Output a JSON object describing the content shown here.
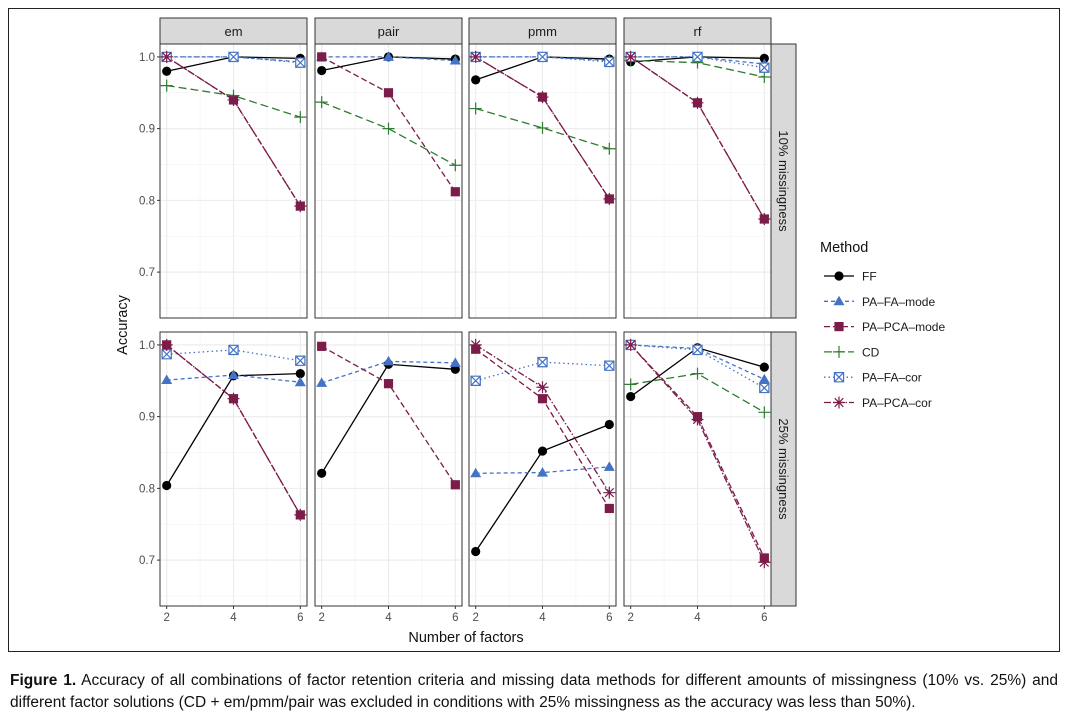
{
  "chart_data": {
    "type": "line",
    "xlabel": "Number of factors",
    "ylabel": "Accuracy",
    "x": [
      2,
      4,
      6
    ],
    "x_ticks": [
      "2",
      "4",
      "6"
    ],
    "ylim": [
      0.636,
      1.018
    ],
    "y_ticks": [
      0.7,
      0.8,
      0.9,
      1.0
    ],
    "y_tick_labels": [
      "0.7",
      "0.8",
      "0.9",
      "1.0"
    ],
    "grid": true,
    "legend": {
      "title": "Method",
      "placement": "right"
    },
    "columns": [
      "em",
      "pair",
      "pmm",
      "rf"
    ],
    "rows": [
      "10% missingness",
      "25% missingness"
    ],
    "methods": [
      {
        "name": "FF",
        "color": "#000000",
        "shape": "circle",
        "dash": "solid"
      },
      {
        "name": "PA–FA–mode",
        "color": "#4472C4",
        "shape": "triangle",
        "dash": "dashed"
      },
      {
        "name": "PA–PCA–mode",
        "color": "#7B1C4A",
        "shape": "square",
        "dash": "longdash"
      },
      {
        "name": "CD",
        "color": "#2E7D32",
        "shape": "plus",
        "dash": "longdash2"
      },
      {
        "name": "PA–FA–cor",
        "color": "#4472C4",
        "shape": "boxx",
        "dash": "dotted"
      },
      {
        "name": "PA–PCA–cor",
        "color": "#7B1C4A",
        "shape": "asterisk",
        "dash": "dotdash"
      }
    ],
    "panels": [
      {
        "row": 0,
        "col": 0,
        "series": {
          "FF": [
            0.98,
            1.0,
            0.998
          ],
          "PA–FA–mode": [
            1.0,
            1.0,
            0.993
          ],
          "PA–PCA–mode": [
            1.0,
            0.94,
            0.792
          ],
          "CD": [
            0.96,
            0.946,
            0.916
          ],
          "PA–FA–cor": [
            1.0,
            1.0,
            0.992
          ],
          "PA–PCA–cor": [
            1.0,
            0.94,
            0.792
          ]
        }
      },
      {
        "row": 0,
        "col": 1,
        "series": {
          "FF": [
            0.981,
            1.0,
            0.997
          ],
          "PA–FA–mode": [
            1.0,
            1.0,
            0.995
          ],
          "PA–PCA–mode": [
            1.0,
            0.95,
            0.812
          ],
          "CD": [
            0.937,
            0.9,
            0.849
          ]
        }
      },
      {
        "row": 0,
        "col": 2,
        "series": {
          "FF": [
            0.968,
            1.0,
            0.997
          ],
          "PA–FA–mode": [
            1.0,
            1.0,
            0.995
          ],
          "PA–PCA–mode": [
            1.0,
            0.944,
            0.802
          ],
          "CD": [
            0.928,
            0.901,
            0.872
          ],
          "PA–FA–cor": [
            1.0,
            1.0,
            0.993
          ],
          "PA–PCA–cor": [
            1.0,
            0.944,
            0.802
          ]
        }
      },
      {
        "row": 0,
        "col": 3,
        "series": {
          "FF": [
            0.993,
            1.0,
            0.998
          ],
          "PA–FA–mode": [
            1.0,
            1.0,
            0.99
          ],
          "PA–PCA–mode": [
            1.0,
            0.936,
            0.774
          ],
          "CD": [
            0.995,
            0.992,
            0.972
          ],
          "PA–FA–cor": [
            1.0,
            1.0,
            0.985
          ],
          "PA–PCA–cor": [
            1.0,
            0.936,
            0.774
          ]
        }
      },
      {
        "row": 1,
        "col": 0,
        "series": {
          "FF": [
            0.804,
            0.957,
            0.96
          ],
          "PA–FA–mode": [
            0.951,
            0.958,
            0.948
          ],
          "PA–PCA–mode": [
            1.0,
            0.925,
            0.763
          ],
          "PA–FA–cor": [
            0.987,
            0.993,
            0.978
          ],
          "PA–PCA–cor": [
            1.0,
            0.925,
            0.763
          ]
        }
      },
      {
        "row": 1,
        "col": 1,
        "series": {
          "FF": [
            0.821,
            0.973,
            0.966
          ],
          "PA–FA–mode": [
            0.947,
            0.977,
            0.975
          ],
          "PA–PCA–mode": [
            0.998,
            0.946,
            0.805
          ]
        }
      },
      {
        "row": 1,
        "col": 2,
        "series": {
          "FF": [
            0.712,
            0.852,
            0.889
          ],
          "PA–FA–mode": [
            0.821,
            0.822,
            0.83
          ],
          "PA–PCA–mode": [
            0.994,
            0.925,
            0.772
          ],
          "PA–FA–cor": [
            0.95,
            0.976,
            0.971
          ],
          "PA–PCA–cor": [
            1.0,
            0.941,
            0.794
          ]
        }
      },
      {
        "row": 1,
        "col": 3,
        "series": {
          "FF": [
            0.928,
            0.996,
            0.969
          ],
          "PA–FA–mode": [
            1.0,
            0.995,
            0.952
          ],
          "PA–PCA–mode": [
            1.0,
            0.9,
            0.703
          ],
          "CD": [
            0.945,
            0.96,
            0.906
          ],
          "PA–FA–cor": [
            1.0,
            0.993,
            0.94
          ],
          "PA–PCA–cor": [
            1.0,
            0.896,
            0.697
          ]
        }
      }
    ]
  },
  "caption": {
    "label": "Figure 1.",
    "text": "Accuracy of all combinations of factor retention criteria and missing data methods for different amounts of missingness (10% vs. 25%) and different factor solutions (CD + em/pmm/pair was excluded in conditions with 25% missingness as the accuracy was less than 50%)."
  }
}
